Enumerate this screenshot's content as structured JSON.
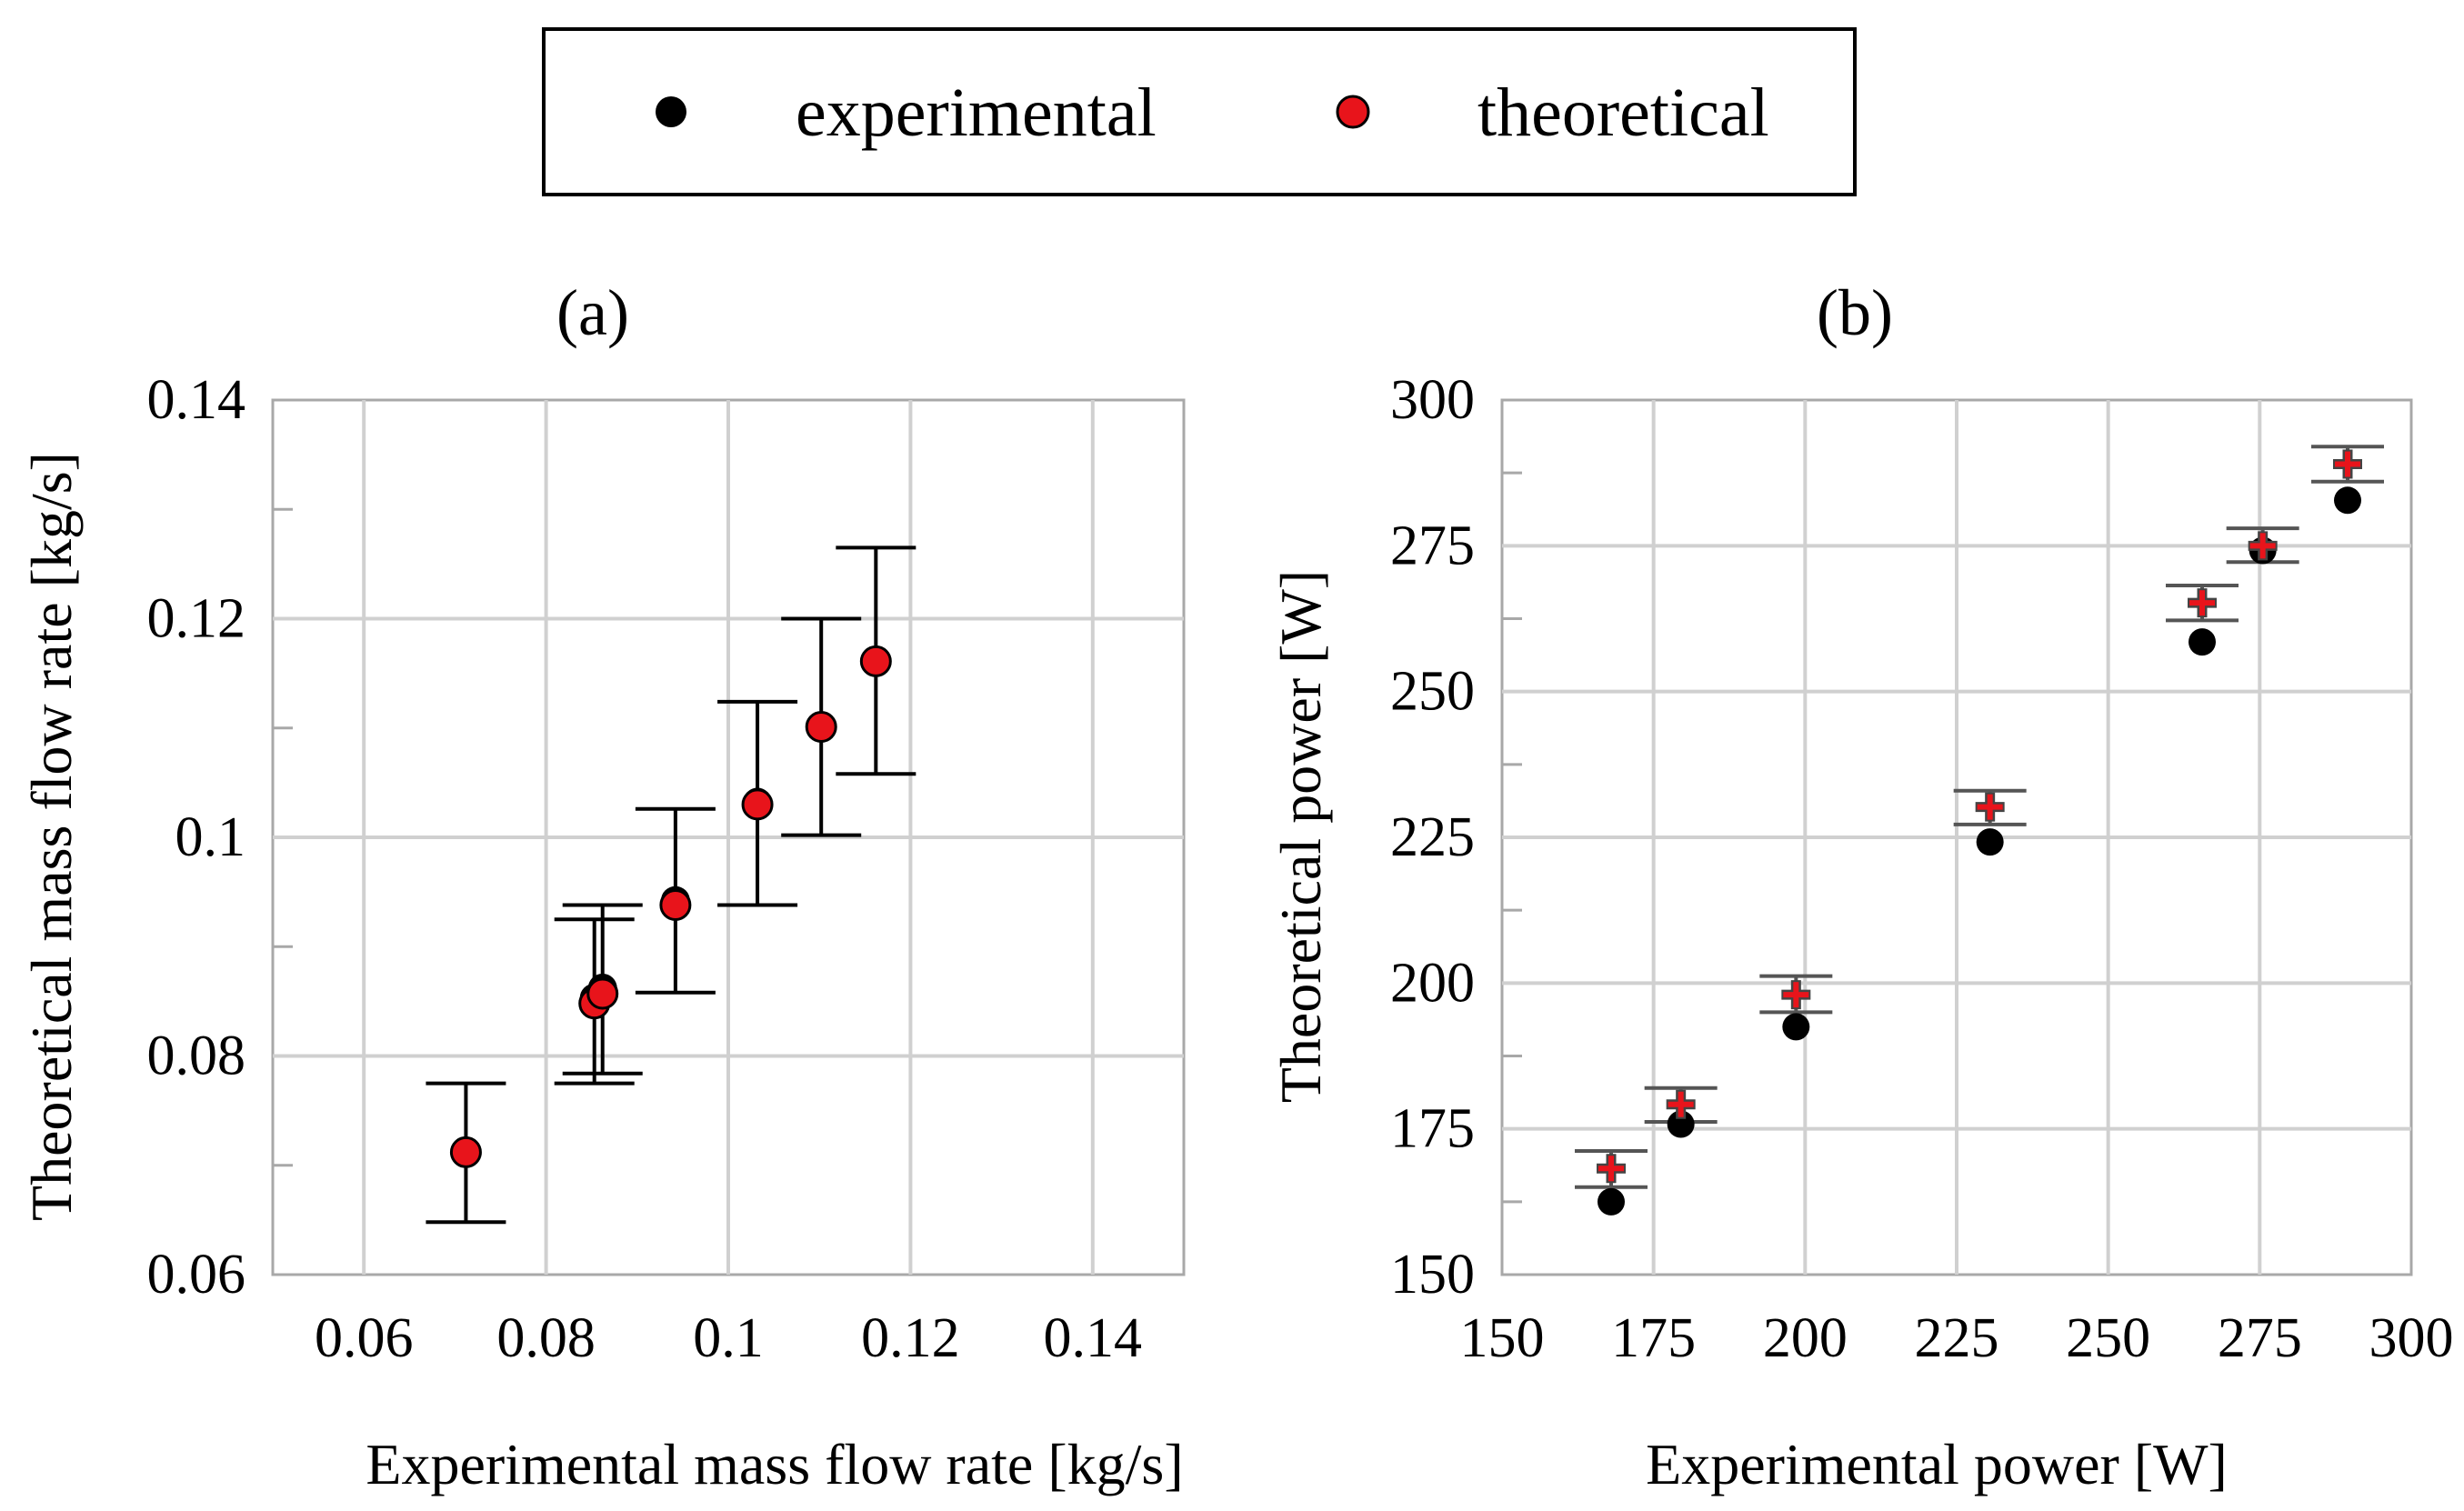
{
  "legend": {
    "experimental_label": "experimental",
    "theoretical_label": "theoretical",
    "experimental_color": "#000000",
    "theoretical_color": "#e8141b"
  },
  "chart_data": [
    {
      "id": "a",
      "type": "scatter",
      "title": "(a)",
      "xlabel": "Experimental mass flow rate [kg/s]",
      "ylabel": "Theoretical mass flow rate [kg/s]",
      "xlim": [
        0.05,
        0.15
      ],
      "ylim": [
        0.06,
        0.14
      ],
      "xticks": [
        0.06,
        0.08,
        0.1,
        0.12,
        0.14
      ],
      "xtick_labels": [
        "0.06",
        "0.08",
        "0.1",
        "0.12",
        "0.14"
      ],
      "yticks": [
        0.06,
        0.08,
        0.1,
        0.12,
        0.14
      ],
      "ytick_labels": [
        "0.06",
        "0.08",
        "0.1",
        "0.12",
        "0.14"
      ],
      "minor_yticks": [
        0.07,
        0.09,
        0.11,
        0.13
      ],
      "grid": true,
      "series": [
        {
          "name": "experimental",
          "x": [
            0.0712,
            0.0853,
            0.0862,
            0.0942,
            0.1032,
            0.1102,
            0.1162
          ],
          "y": [
            0.0712,
            0.0853,
            0.0862,
            0.0942,
            0.1032,
            0.1102,
            0.1162
          ]
        },
        {
          "name": "theoretical",
          "x": [
            0.0712,
            0.0853,
            0.0862,
            0.0942,
            0.1032,
            0.1102,
            0.1162
          ],
          "y": [
            0.0712,
            0.0848,
            0.0857,
            0.0938,
            0.103,
            0.1101,
            0.1161
          ],
          "err_low": [
            0.0648,
            0.0775,
            0.0784,
            0.0858,
            0.0938,
            0.1002,
            0.1058
          ],
          "err_high": [
            0.0775,
            0.0925,
            0.0938,
            0.1026,
            0.1124,
            0.12,
            0.1265
          ]
        }
      ]
    },
    {
      "id": "b",
      "type": "scatter",
      "title": "(b)",
      "xlabel": "Experimental power [W]",
      "ylabel": "Theoretical power [W]",
      "xlim": [
        150,
        300
      ],
      "ylim": [
        150,
        300
      ],
      "xticks": [
        150,
        175,
        200,
        225,
        250,
        275,
        300
      ],
      "xtick_labels": [
        "150",
        "175",
        "200",
        "225",
        "250",
        "275",
        "300"
      ],
      "yticks": [
        150,
        175,
        200,
        225,
        250,
        275,
        300
      ],
      "ytick_labels": [
        "150",
        "175",
        "200",
        "225",
        "250",
        "275",
        "300"
      ],
      "minor_yticks": [
        162.5,
        187.5,
        212.5,
        237.5,
        262.5,
        287.5
      ],
      "grid": true,
      "series": [
        {
          "name": "experimental",
          "x": [
            168,
            179.5,
            198.5,
            230.5,
            265.5,
            275.5,
            289.5
          ],
          "y": [
            162.5,
            175.8,
            192.5,
            224.2,
            258.5,
            274.2,
            282.8
          ]
        },
        {
          "name": "theoretical",
          "x": [
            168,
            179.5,
            198.5,
            230.5,
            265.5,
            275.5,
            289.5
          ],
          "y": [
            168.2,
            179.2,
            198.0,
            230.2,
            265.2,
            275.0,
            289.0
          ],
          "err_low": [
            165.0,
            176.2,
            195.0,
            227.2,
            262.2,
            272.2,
            286.0
          ],
          "err_high": [
            171.2,
            182.0,
            201.2,
            233.0,
            268.2,
            278.0,
            292.0
          ]
        }
      ]
    }
  ]
}
